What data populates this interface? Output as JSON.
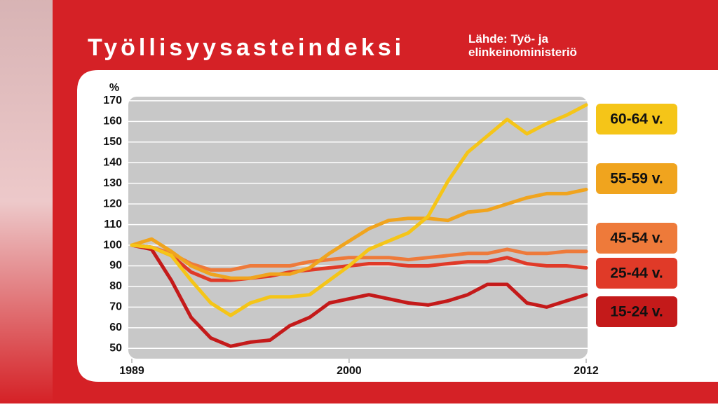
{
  "chart_data": {
    "type": "line",
    "title": "Työllisyysasteindeksi",
    "subtitle": "Lähde: Työ- ja elinkeinoministeriö",
    "y_label": "%",
    "x": [
      1989,
      1990,
      1991,
      1992,
      1993,
      1994,
      1995,
      1996,
      1997,
      1998,
      1999,
      2000,
      2001,
      2002,
      2003,
      2004,
      2005,
      2006,
      2007,
      2008,
      2009,
      2010,
      2011,
      2012
    ],
    "xlim": [
      1989,
      2012
    ],
    "xticks": [
      1989,
      2000,
      2012
    ],
    "ylim": [
      45,
      172
    ],
    "yticks": [
      50,
      60,
      70,
      80,
      90,
      100,
      110,
      120,
      130,
      140,
      150,
      160,
      170
    ],
    "grid": true,
    "series": [
      {
        "name": "60-64 v.",
        "color": "#f5c518",
        "values": [
          100,
          99,
          95,
          83,
          72,
          66,
          72,
          75,
          75,
          76,
          83,
          90,
          98,
          102,
          106,
          114,
          131,
          145,
          153,
          161,
          154,
          159,
          163,
          168
        ]
      },
      {
        "name": "55-59 v.",
        "color": "#f0a41e",
        "values": [
          100,
          103,
          97,
          90,
          86,
          84,
          84,
          86,
          86,
          89,
          96,
          102,
          108,
          112,
          113,
          113,
          112,
          116,
          117,
          120,
          123,
          125,
          125,
          127
        ]
      },
      {
        "name": "45-54 v.",
        "color": "#ee7a3a",
        "values": [
          100,
          99,
          96,
          91,
          88,
          88,
          90,
          90,
          90,
          92,
          93,
          94,
          94,
          94,
          93,
          94,
          95,
          96,
          96,
          98,
          96,
          96,
          97,
          97
        ]
      },
      {
        "name": "25-44 v.",
        "color": "#e03a28",
        "values": [
          100,
          99,
          95,
          87,
          83,
          83,
          84,
          85,
          87,
          88,
          89,
          90,
          91,
          91,
          90,
          90,
          91,
          92,
          92,
          94,
          91,
          90,
          90,
          89
        ]
      },
      {
        "name": "15-24 v.",
        "color": "#c41a1a",
        "values": [
          100,
          98,
          83,
          65,
          55,
          51,
          53,
          54,
          61,
          65,
          72,
          74,
          76,
          74,
          72,
          71,
          73,
          76,
          81,
          81,
          72,
          70,
          73,
          76
        ]
      }
    ]
  }
}
